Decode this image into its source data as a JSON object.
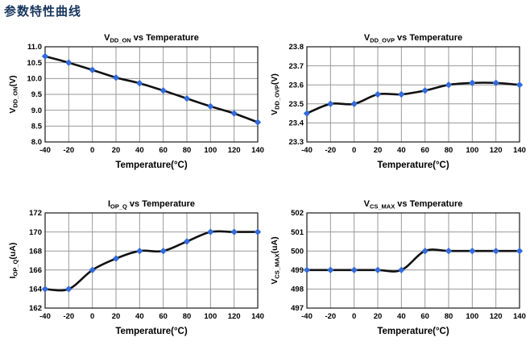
{
  "page": {
    "heading": "参数特性曲线"
  },
  "colors": {
    "background": "#FFFFFF",
    "heading": "#17365D",
    "text": "#000000",
    "axis_frame": "#1A1A1A",
    "gridline": "#999999",
    "series_line": "#111111",
    "marker": "#336BD9"
  },
  "chart_data": [
    {
      "type": "line",
      "title": {
        "base": "V",
        "sub": "DD_ON",
        "rest": " vs Temperature"
      },
      "ylabel": {
        "base": "V",
        "sub": "DD_ON",
        "rest": "(V)"
      },
      "xlabel": "Temperature(°C)",
      "x": [
        -40,
        -20,
        0,
        20,
        40,
        60,
        80,
        100,
        120,
        140
      ],
      "values": [
        10.7,
        10.5,
        10.27,
        10.03,
        9.85,
        9.62,
        9.37,
        9.12,
        8.9,
        8.62
      ],
      "ylim": [
        8.0,
        11.0
      ],
      "yticks": [
        "8.0",
        "8.5",
        "9.0",
        "9.5",
        "10.0",
        "10.5",
        "11.0"
      ],
      "grid": true,
      "legend": "none",
      "marker": "diamond"
    },
    {
      "type": "line",
      "title": {
        "base": "V",
        "sub": "DD_OVP",
        "rest": " vs Temperature"
      },
      "ylabel": {
        "base": "V",
        "sub": "DD_OVP",
        "rest": "(V)"
      },
      "xlabel": "Temperature(°C)",
      "x": [
        -40,
        -20,
        0,
        20,
        40,
        60,
        80,
        100,
        120,
        140
      ],
      "values": [
        23.45,
        23.5,
        23.5,
        23.55,
        23.55,
        23.57,
        23.6,
        23.61,
        23.61,
        23.6
      ],
      "ylim": [
        23.3,
        23.8
      ],
      "yticks": [
        "23.3",
        "23.4",
        "23.5",
        "23.6",
        "23.7",
        "23.8"
      ],
      "grid": true,
      "legend": "none",
      "marker": "diamond"
    },
    {
      "type": "line",
      "title": {
        "base": "I",
        "sub": "OP_Q",
        "rest": " vs Temperature"
      },
      "ylabel": {
        "base": "I",
        "sub": "OP_Q",
        "rest": "(uA)"
      },
      "xlabel": "Temperature(°C)",
      "x": [
        -40,
        -20,
        0,
        20,
        40,
        60,
        80,
        100,
        120,
        140
      ],
      "values": [
        164,
        164,
        166,
        167.2,
        168,
        168,
        169,
        170,
        170,
        170
      ],
      "ylim": [
        162,
        172
      ],
      "yticks": [
        "162",
        "164",
        "166",
        "168",
        "170",
        "172"
      ],
      "grid": true,
      "legend": "none",
      "marker": "diamond"
    },
    {
      "type": "line",
      "title": {
        "base": "V",
        "sub": "CS_MAX",
        "rest": " vs Temperature"
      },
      "ylabel": {
        "base": "V",
        "sub": "CS_MAX",
        "rest": "(uA)"
      },
      "xlabel": "Temperature(°C)",
      "x": [
        -40,
        -20,
        0,
        20,
        40,
        60,
        80,
        100,
        120,
        140
      ],
      "values": [
        499,
        499,
        499,
        499,
        499,
        500,
        500,
        500,
        500,
        500
      ],
      "ylim": [
        497,
        502
      ],
      "yticks": [
        "497",
        "498",
        "499",
        "500",
        "501",
        "502"
      ],
      "grid": true,
      "legend": "none",
      "marker": "diamond"
    }
  ]
}
